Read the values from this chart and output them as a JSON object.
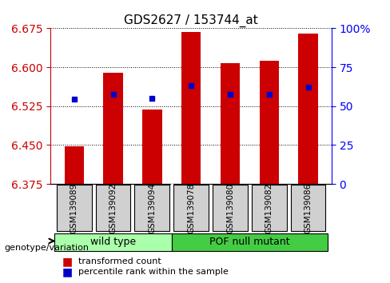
{
  "title": "GDS2627 / 153744_at",
  "samples": [
    "GSM139089",
    "GSM139092",
    "GSM139094",
    "GSM139078",
    "GSM139080",
    "GSM139082",
    "GSM139086"
  ],
  "bar_tops": [
    6.448,
    6.59,
    6.518,
    6.668,
    6.608,
    6.613,
    6.665
  ],
  "bar_bottom": 6.375,
  "percentile_values": [
    6.538,
    6.547,
    6.54,
    6.565,
    6.548,
    6.548,
    6.562
  ],
  "ylim_left": [
    6.375,
    6.675
  ],
  "yticks_left": [
    6.375,
    6.45,
    6.525,
    6.6,
    6.675
  ],
  "ylim_right": [
    0,
    100
  ],
  "yticks_right": [
    0,
    25,
    50,
    75,
    100
  ],
  "yticklabels_right": [
    "0",
    "25",
    "50",
    "75",
    "100%"
  ],
  "bar_color": "#cc0000",
  "blue_color": "#0000cc",
  "bar_width": 0.5,
  "groups": [
    {
      "label": "wild type",
      "indices": [
        0,
        1,
        2
      ],
      "color": "#99ff99"
    },
    {
      "label": "POF null mutant",
      "indices": [
        3,
        4,
        5,
        6
      ],
      "color": "#33cc33"
    }
  ],
  "group_label": "genotype/variation",
  "legend_items": [
    {
      "color": "#cc0000",
      "label": "transformed count"
    },
    {
      "color": "#0000cc",
      "label": "percentile rank within the sample"
    }
  ],
  "background_color": "#ffffff",
  "plot_bg_color": "#ffffff",
  "grid_style": "dotted",
  "xlabel_color": "#cc0000",
  "ylabel_right_color": "#0000ff"
}
